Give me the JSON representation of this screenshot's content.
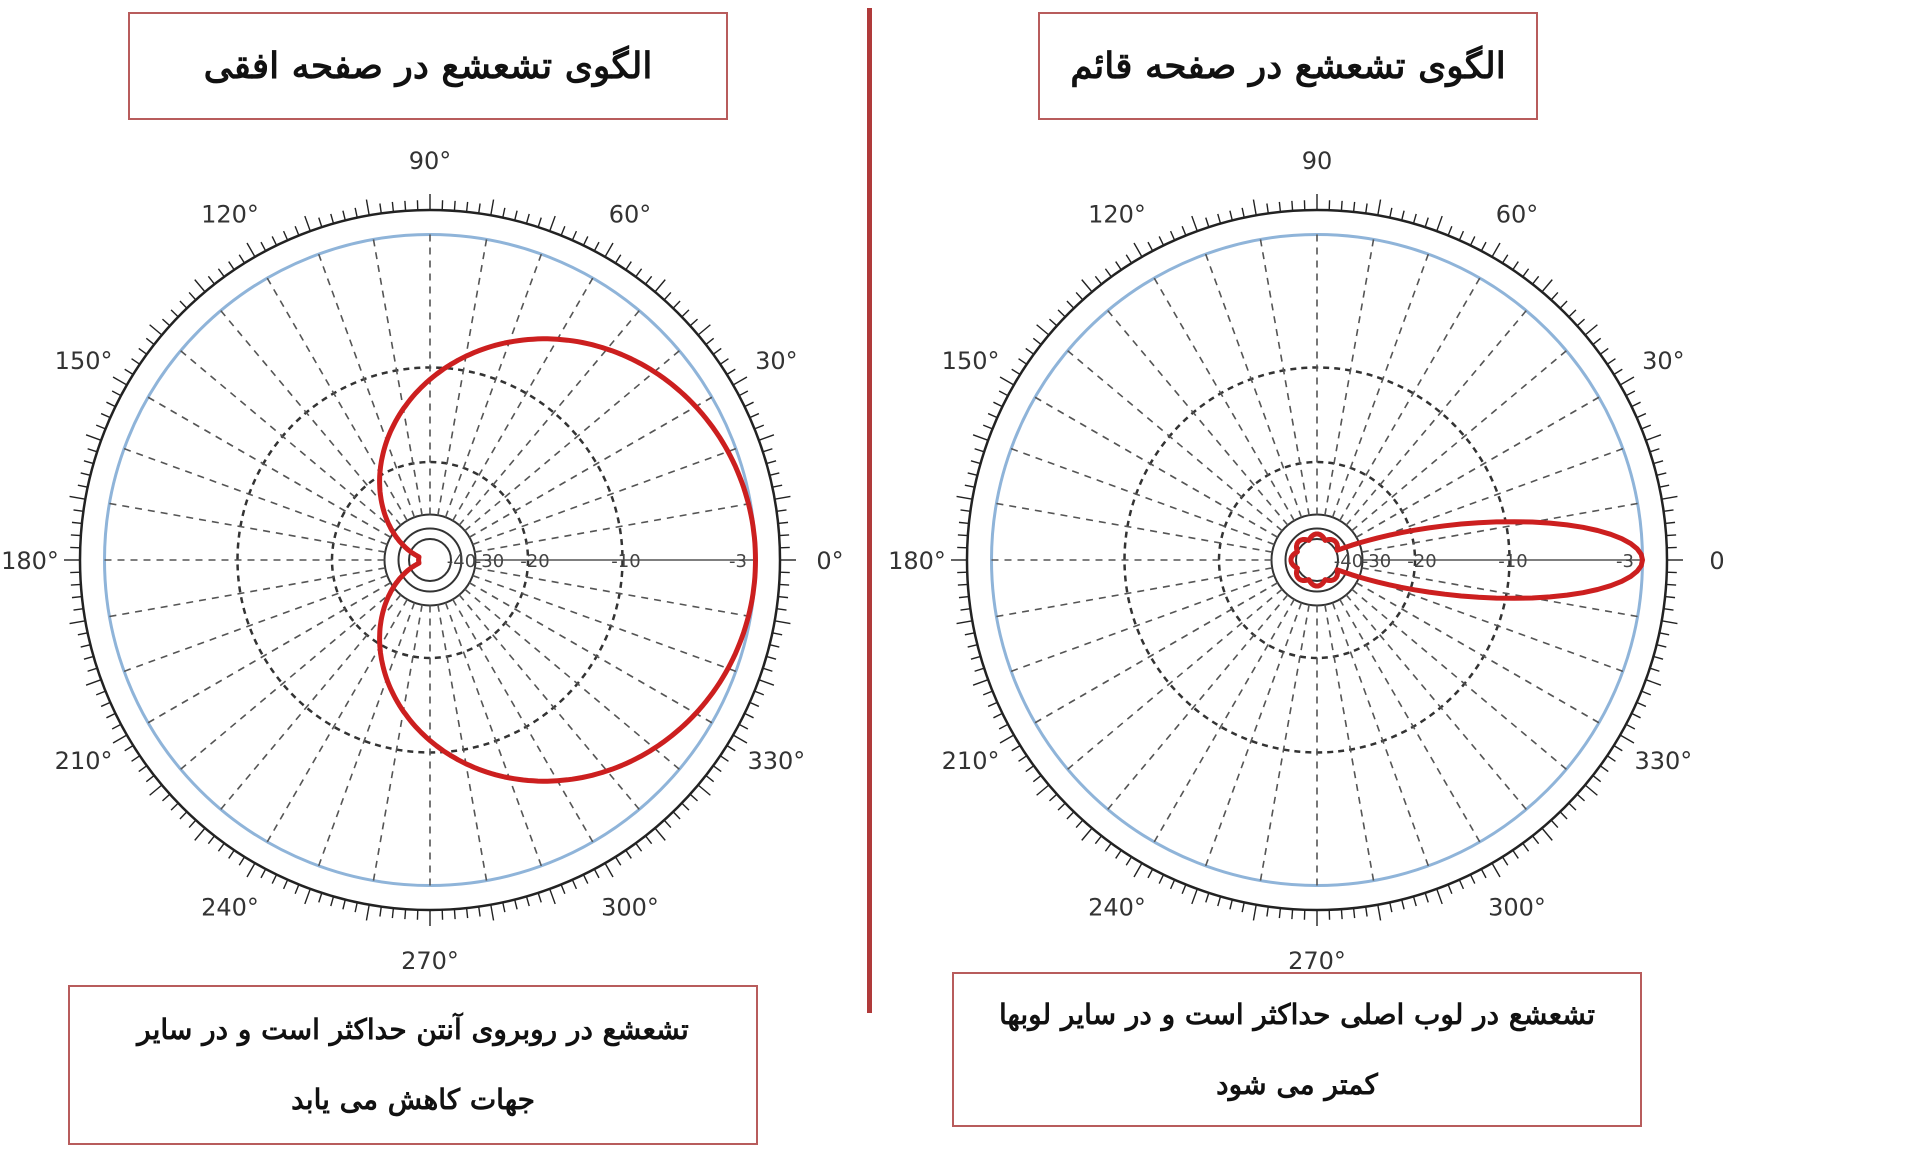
{
  "left": {
    "title": "الگوی تشعشع در صفحه افقی",
    "note_line1": "تشعشع در روبروی آنتن حداکثر است و در سایر",
    "note_line2": "جهات کاهش می یابد",
    "angle_labels": [
      {
        "angle": 0,
        "text": "0°"
      },
      {
        "angle": 30,
        "text": "30°"
      },
      {
        "angle": 60,
        "text": "60°"
      },
      {
        "angle": 90,
        "text": "90°"
      },
      {
        "angle": 120,
        "text": "120°"
      },
      {
        "angle": 150,
        "text": "150°"
      },
      {
        "angle": 180,
        "text": "180°"
      },
      {
        "angle": 210,
        "text": "210°"
      },
      {
        "angle": 240,
        "text": "240°"
      },
      {
        "angle": 270,
        "text": "270°"
      },
      {
        "angle": 300,
        "text": "300°"
      },
      {
        "angle": 330,
        "text": "330°"
      }
    ],
    "radial_labels": [
      "-3",
      "-10",
      "-20",
      "-30",
      "-40"
    ]
  },
  "right": {
    "title": "الگوی تشعشع در صفحه قائم",
    "note_line1": "تشعشع در لوب اصلی حداکثر است و در سایر لوبها",
    "note_line2": "کمتر می شود",
    "angle_labels": [
      {
        "angle": 0,
        "text": "0"
      },
      {
        "angle": 30,
        "text": "30°"
      },
      {
        "angle": 60,
        "text": "60°"
      },
      {
        "angle": 90,
        "text": "90"
      },
      {
        "angle": 120,
        "text": "120°"
      },
      {
        "angle": 150,
        "text": "150°"
      },
      {
        "angle": 180,
        "text": "180°"
      },
      {
        "angle": 210,
        "text": "210°"
      },
      {
        "angle": 240,
        "text": "240°"
      },
      {
        "angle": 270,
        "text": "270°"
      },
      {
        "angle": 300,
        "text": "300°"
      },
      {
        "angle": 330,
        "text": "330°"
      }
    ],
    "radial_labels": [
      "-3",
      "-10",
      "-20",
      "-30",
      "-40"
    ]
  },
  "colors": {
    "pattern": "#cc1f1f",
    "outer_ring": "#8fb4d9",
    "box_border": "#b85c5c",
    "divider": "#b03a3a",
    "grid": "#333333"
  }
}
